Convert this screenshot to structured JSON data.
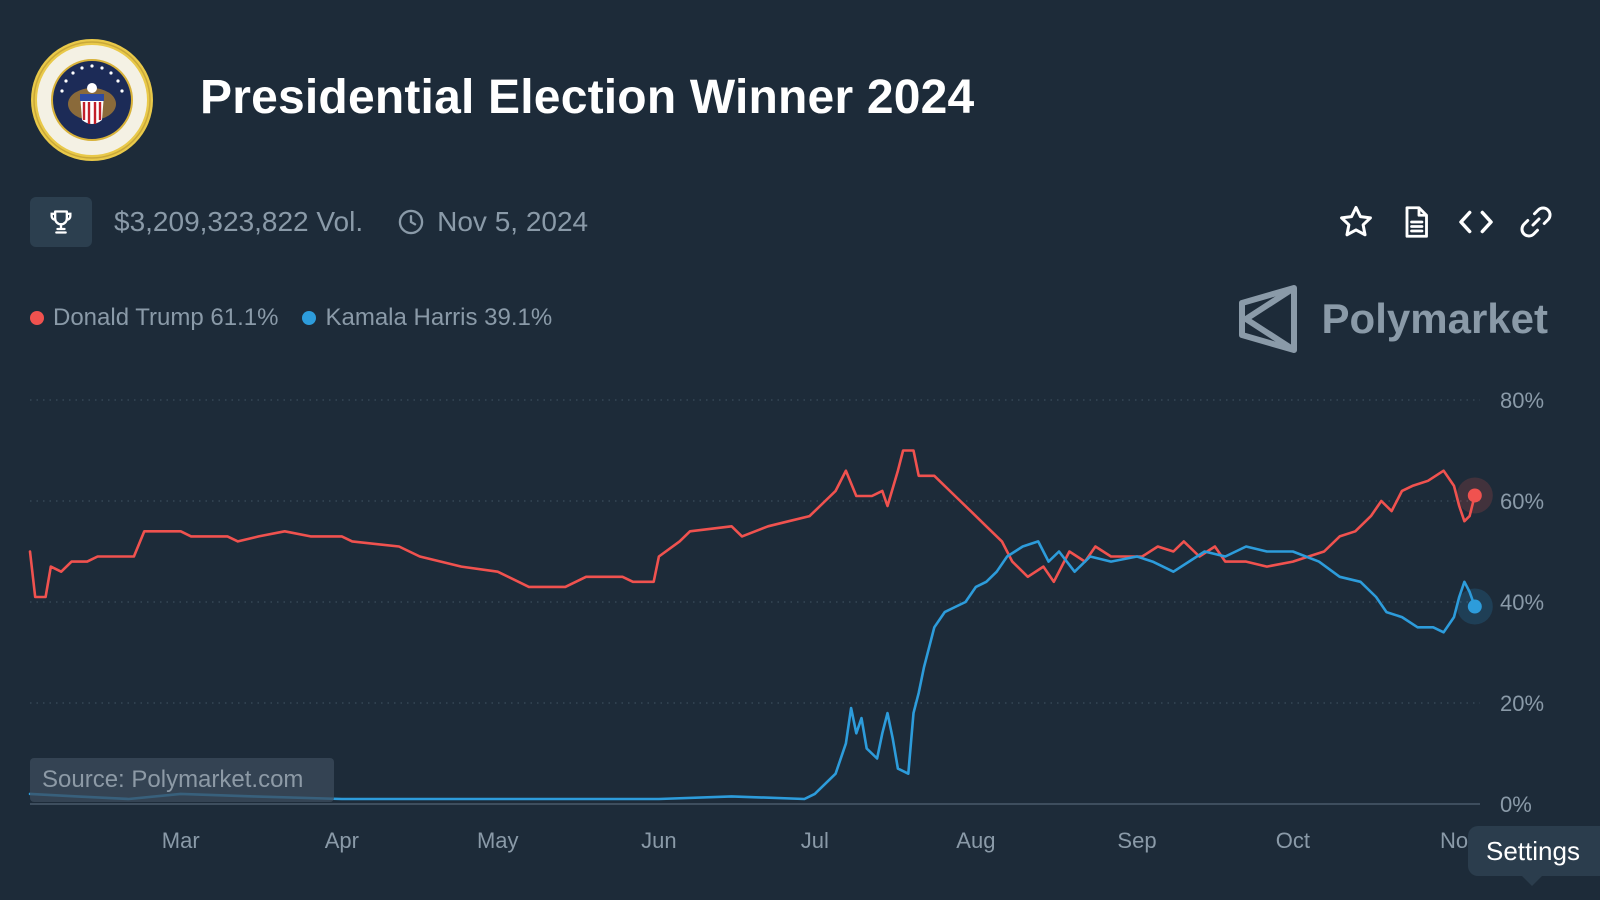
{
  "header": {
    "title": "Presidential Election Winner 2024"
  },
  "meta": {
    "volume": "$3,209,323,822 Vol.",
    "end_date": "Nov 5, 2024"
  },
  "legend": [
    {
      "label": "Donald Trump 61.1%",
      "color": "#f0524f"
    },
    {
      "label": "Kamala Harris 39.1%",
      "color": "#2d9cdb"
    }
  ],
  "brand": {
    "name": "Polymarket"
  },
  "source": "Source: Polymarket.com",
  "tooltip": "Settings",
  "icons": {
    "trophy": "trophy-icon",
    "clock": "clock-icon",
    "star": "star-icon",
    "document": "document-icon",
    "embed": "code-icon",
    "link": "link-icon",
    "logo": "polymarket-logo-icon",
    "seal": "presidential-seal-icon"
  },
  "chart_data": {
    "type": "line",
    "title": "",
    "xlabel": "",
    "ylabel": "",
    "x_ticks": [
      "Mar",
      "Apr",
      "May",
      "Jun",
      "Jul",
      "Aug",
      "Sep",
      "Oct",
      "No"
    ],
    "y_ticks": [
      "0%",
      "20%",
      "40%",
      "60%",
      "80%"
    ],
    "ylim": [
      0,
      80
    ],
    "x_range": [
      "2024-02-01",
      "2024-11-06"
    ],
    "grid": true,
    "legend_position": "top-left",
    "series": [
      {
        "name": "Donald Trump",
        "color": "#f0524f",
        "points": [
          [
            "2024-02-01",
            50
          ],
          [
            "2024-02-02",
            41
          ],
          [
            "2024-02-04",
            41
          ],
          [
            "2024-02-05",
            47
          ],
          [
            "2024-02-07",
            46
          ],
          [
            "2024-02-09",
            48
          ],
          [
            "2024-02-12",
            48
          ],
          [
            "2024-02-14",
            49
          ],
          [
            "2024-02-21",
            49
          ],
          [
            "2024-02-23",
            54
          ],
          [
            "2024-03-01",
            54
          ],
          [
            "2024-03-03",
            53
          ],
          [
            "2024-03-10",
            53
          ],
          [
            "2024-03-12",
            52
          ],
          [
            "2024-03-16",
            53
          ],
          [
            "2024-03-21",
            54
          ],
          [
            "2024-03-26",
            53
          ],
          [
            "2024-04-01",
            53
          ],
          [
            "2024-04-03",
            52
          ],
          [
            "2024-04-12",
            51
          ],
          [
            "2024-04-16",
            49
          ],
          [
            "2024-04-24",
            47
          ],
          [
            "2024-05-01",
            46
          ],
          [
            "2024-05-05",
            44
          ],
          [
            "2024-05-07",
            43
          ],
          [
            "2024-05-14",
            43
          ],
          [
            "2024-05-18",
            45
          ],
          [
            "2024-05-25",
            45
          ],
          [
            "2024-05-27",
            44
          ],
          [
            "2024-05-31",
            44
          ],
          [
            "2024-06-01",
            49
          ],
          [
            "2024-06-05",
            52
          ],
          [
            "2024-06-07",
            54
          ],
          [
            "2024-06-15",
            55
          ],
          [
            "2024-06-17",
            53
          ],
          [
            "2024-06-22",
            55
          ],
          [
            "2024-06-26",
            56
          ],
          [
            "2024-06-30",
            57
          ],
          [
            "2024-07-03",
            60
          ],
          [
            "2024-07-05",
            62
          ],
          [
            "2024-07-07",
            66
          ],
          [
            "2024-07-09",
            61
          ],
          [
            "2024-07-12",
            61
          ],
          [
            "2024-07-14",
            62
          ],
          [
            "2024-07-15",
            59
          ],
          [
            "2024-07-17",
            66
          ],
          [
            "2024-07-18",
            70
          ],
          [
            "2024-07-20",
            70
          ],
          [
            "2024-07-21",
            65
          ],
          [
            "2024-07-24",
            65
          ],
          [
            "2024-07-28",
            61
          ],
          [
            "2024-07-31",
            58
          ],
          [
            "2024-08-03",
            55
          ],
          [
            "2024-08-06",
            52
          ],
          [
            "2024-08-08",
            48
          ],
          [
            "2024-08-11",
            45
          ],
          [
            "2024-08-14",
            47
          ],
          [
            "2024-08-16",
            44
          ],
          [
            "2024-08-19",
            50
          ],
          [
            "2024-08-22",
            48
          ],
          [
            "2024-08-24",
            51
          ],
          [
            "2024-08-27",
            49
          ],
          [
            "2024-09-02",
            49
          ],
          [
            "2024-09-05",
            51
          ],
          [
            "2024-09-08",
            50
          ],
          [
            "2024-09-10",
            52
          ],
          [
            "2024-09-13",
            49
          ],
          [
            "2024-09-16",
            51
          ],
          [
            "2024-09-18",
            48
          ],
          [
            "2024-09-22",
            48
          ],
          [
            "2024-09-26",
            47
          ],
          [
            "2024-10-01",
            48
          ],
          [
            "2024-10-04",
            49
          ],
          [
            "2024-10-07",
            50
          ],
          [
            "2024-10-10",
            53
          ],
          [
            "2024-10-13",
            54
          ],
          [
            "2024-10-16",
            57
          ],
          [
            "2024-10-18",
            60
          ],
          [
            "2024-10-20",
            58
          ],
          [
            "2024-10-22",
            62
          ],
          [
            "2024-10-24",
            63
          ],
          [
            "2024-10-27",
            64
          ],
          [
            "2024-10-30",
            66
          ],
          [
            "2024-11-01",
            63
          ],
          [
            "2024-11-02",
            59
          ],
          [
            "2024-11-03",
            56
          ],
          [
            "2024-11-04",
            57
          ],
          [
            "2024-11-05",
            61.1
          ]
        ]
      },
      {
        "name": "Kamala Harris",
        "color": "#2d9cdb",
        "points": [
          [
            "2024-02-01",
            2
          ],
          [
            "2024-02-10",
            1.5
          ],
          [
            "2024-02-20",
            1
          ],
          [
            "2024-03-01",
            2
          ],
          [
            "2024-03-15",
            1.5
          ],
          [
            "2024-04-01",
            1
          ],
          [
            "2024-05-01",
            1
          ],
          [
            "2024-06-01",
            1
          ],
          [
            "2024-06-15",
            1.5
          ],
          [
            "2024-06-29",
            1
          ],
          [
            "2024-07-01",
            2
          ],
          [
            "2024-07-03",
            4
          ],
          [
            "2024-07-05",
            6
          ],
          [
            "2024-07-07",
            12
          ],
          [
            "2024-07-08",
            19
          ],
          [
            "2024-07-09",
            14
          ],
          [
            "2024-07-10",
            17
          ],
          [
            "2024-07-11",
            11
          ],
          [
            "2024-07-13",
            9
          ],
          [
            "2024-07-14",
            14
          ],
          [
            "2024-07-15",
            18
          ],
          [
            "2024-07-16",
            13
          ],
          [
            "2024-07-17",
            7
          ],
          [
            "2024-07-19",
            6
          ],
          [
            "2024-07-20",
            18
          ],
          [
            "2024-07-21",
            22
          ],
          [
            "2024-07-22",
            27
          ],
          [
            "2024-07-24",
            35
          ],
          [
            "2024-07-26",
            38
          ],
          [
            "2024-07-28",
            39
          ],
          [
            "2024-07-30",
            40
          ],
          [
            "2024-08-01",
            43
          ],
          [
            "2024-08-03",
            44
          ],
          [
            "2024-08-05",
            46
          ],
          [
            "2024-08-07",
            49
          ],
          [
            "2024-08-10",
            51
          ],
          [
            "2024-08-13",
            52
          ],
          [
            "2024-08-15",
            48
          ],
          [
            "2024-08-17",
            50
          ],
          [
            "2024-08-20",
            46
          ],
          [
            "2024-08-23",
            49
          ],
          [
            "2024-08-27",
            48
          ],
          [
            "2024-09-01",
            49
          ],
          [
            "2024-09-04",
            48
          ],
          [
            "2024-09-08",
            46
          ],
          [
            "2024-09-11",
            48
          ],
          [
            "2024-09-14",
            50
          ],
          [
            "2024-09-18",
            49
          ],
          [
            "2024-09-22",
            51
          ],
          [
            "2024-09-26",
            50
          ],
          [
            "2024-10-01",
            50
          ],
          [
            "2024-10-06",
            48
          ],
          [
            "2024-10-10",
            45
          ],
          [
            "2024-10-14",
            44
          ],
          [
            "2024-10-17",
            41
          ],
          [
            "2024-10-19",
            38
          ],
          [
            "2024-10-22",
            37
          ],
          [
            "2024-10-25",
            35
          ],
          [
            "2024-10-28",
            35
          ],
          [
            "2024-10-30",
            34
          ],
          [
            "2024-11-01",
            37
          ],
          [
            "2024-11-02",
            41
          ],
          [
            "2024-11-03",
            44
          ],
          [
            "2024-11-04",
            42
          ],
          [
            "2024-11-05",
            39.1
          ]
        ]
      }
    ]
  }
}
